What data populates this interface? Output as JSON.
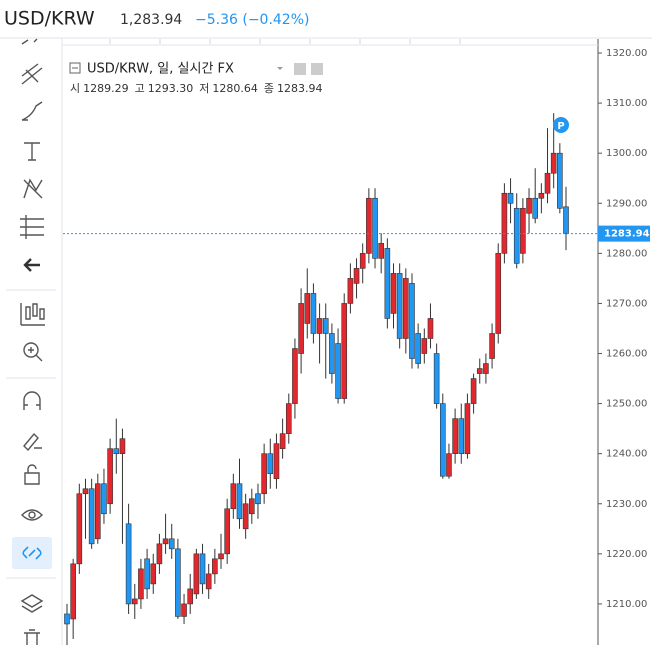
{
  "header": {
    "symbol": "USD/KRW",
    "price": "1,283.94",
    "change": "−5.36 (−0.42%)"
  },
  "chart_data": {
    "type": "candlestick",
    "title": "USD/KRW, 일, 실시간 FX",
    "ohlc_labels": [
      [
        "시",
        "1289.29"
      ],
      [
        "고",
        "1293.30"
      ],
      [
        "저",
        "1280.64"
      ],
      [
        "종",
        "1283.94"
      ]
    ],
    "up_color": "#e0282e",
    "down_color": "#2196f3",
    "ylim": [
      1201.8,
      1322.8
    ],
    "yticks": [
      {
        "value": 1210,
        "label": "1210.00"
      },
      {
        "value": 1220,
        "label": "1220.00"
      },
      {
        "value": 1230,
        "label": "1230.00"
      },
      {
        "value": 1240,
        "label": "1240.00"
      },
      {
        "value": 1250,
        "label": "1250.00"
      },
      {
        "value": 1260,
        "label": "1260.00"
      },
      {
        "value": 1270,
        "label": "1270.00"
      },
      {
        "value": 1280,
        "label": "1280.00"
      },
      {
        "value": 1290,
        "label": "1290.00"
      },
      {
        "value": 1300,
        "label": "1300.00"
      },
      {
        "value": 1310,
        "label": "1310.00"
      },
      {
        "value": 1320,
        "label": "1320.00"
      }
    ],
    "price_line": {
      "value": 1283.94,
      "label": "1283.94"
    },
    "candles": [
      [
        1208,
        1210,
        1201,
        1206
      ],
      [
        1207,
        1219,
        1203,
        1218
      ],
      [
        1218,
        1234,
        1216,
        1232
      ],
      [
        1232,
        1235,
        1223,
        1233
      ],
      [
        1233,
        1235,
        1221,
        1222
      ],
      [
        1223,
        1236,
        1222,
        1234
      ],
      [
        1234,
        1237,
        1226,
        1228
      ],
      [
        1230,
        1243,
        1228,
        1241
      ],
      [
        1241,
        1247,
        1236,
        1240
      ],
      [
        1240,
        1245,
        1222,
        1243
      ],
      [
        1226,
        1230,
        1208,
        1210
      ],
      [
        1210,
        1214,
        1207,
        1211
      ],
      [
        1211,
        1219,
        1209,
        1217
      ],
      [
        1219,
        1221,
        1211,
        1213
      ],
      [
        1214,
        1220,
        1212,
        1218
      ],
      [
        1218,
        1224,
        1216,
        1222
      ],
      [
        1222,
        1228,
        1220,
        1223
      ],
      [
        1223,
        1226,
        1219,
        1221
      ],
      [
        1221,
        1223,
        1207,
        1207.5
      ],
      [
        1207.5,
        1212,
        1206,
        1210
      ],
      [
        1210,
        1216,
        1208,
        1213
      ],
      [
        1212,
        1221,
        1211,
        1220
      ],
      [
        1220,
        1222,
        1212,
        1214
      ],
      [
        1213,
        1218,
        1211,
        1216
      ],
      [
        1216,
        1221,
        1214,
        1219
      ],
      [
        1219,
        1224,
        1217,
        1220
      ],
      [
        1220,
        1231,
        1218,
        1229
      ],
      [
        1229,
        1236,
        1227,
        1234
      ],
      [
        1234,
        1239,
        1225,
        1227
      ],
      [
        1225,
        1232,
        1223,
        1230
      ],
      [
        1228,
        1233,
        1226,
        1231
      ],
      [
        1232,
        1234,
        1227,
        1230
      ],
      [
        1232,
        1242,
        1230,
        1240
      ],
      [
        1240,
        1243,
        1233,
        1236
      ],
      [
        1235,
        1244,
        1233,
        1242
      ],
      [
        1241,
        1247,
        1239,
        1244
      ],
      [
        1244,
        1252,
        1242,
        1250
      ],
      [
        1250,
        1263,
        1247,
        1261
      ],
      [
        1260,
        1273,
        1256,
        1270
      ],
      [
        1266,
        1277,
        1263,
        1272
      ],
      [
        1272,
        1274,
        1262,
        1264
      ],
      [
        1264,
        1270,
        1258,
        1267
      ],
      [
        1267,
        1270,
        1255,
        1264
      ],
      [
        1264,
        1266,
        1254,
        1256
      ],
      [
        1262,
        1265,
        1250,
        1251
      ],
      [
        1251,
        1272,
        1250,
        1270
      ],
      [
        1270,
        1278,
        1268,
        1275
      ],
      [
        1274,
        1279,
        1271,
        1277
      ],
      [
        1277,
        1282,
        1274,
        1280
      ],
      [
        1280,
        1293,
        1278,
        1291
      ],
      [
        1291,
        1293,
        1277,
        1279
      ],
      [
        1279,
        1284,
        1276,
        1282
      ],
      [
        1281,
        1283,
        1265,
        1267
      ],
      [
        1268,
        1278,
        1265,
        1276
      ],
      [
        1276,
        1278,
        1261,
        1263
      ],
      [
        1263,
        1277,
        1260,
        1275
      ],
      [
        1274,
        1276,
        1257,
        1259
      ],
      [
        1264,
        1266,
        1257,
        1258
      ],
      [
        1260,
        1265,
        1258,
        1263
      ],
      [
        1263,
        1270,
        1261,
        1267
      ],
      [
        1260,
        1262,
        1249,
        1250
      ],
      [
        1250,
        1252,
        1235,
        1235.5
      ],
      [
        1235.5,
        1242,
        1235,
        1240
      ],
      [
        1240,
        1249,
        1238,
        1247
      ],
      [
        1247,
        1250,
        1238,
        1240
      ],
      [
        1240,
        1252,
        1239,
        1250
      ],
      [
        1250,
        1256,
        1248,
        1255
      ],
      [
        1256,
        1259,
        1254,
        1257
      ],
      [
        1256,
        1260,
        1254,
        1258
      ],
      [
        1259,
        1266,
        1257,
        1264
      ],
      [
        1264,
        1282,
        1262,
        1280
      ],
      [
        1280,
        1294,
        1278,
        1292
      ],
      [
        1292,
        1295,
        1286,
        1290
      ],
      [
        1289,
        1292,
        1277,
        1278
      ],
      [
        1280,
        1291,
        1278,
        1289
      ],
      [
        1288,
        1293,
        1284,
        1291
      ],
      [
        1291,
        1297,
        1286,
        1287
      ],
      [
        1291,
        1294,
        1288,
        1292
      ],
      [
        1292,
        1305,
        1290,
        1296
      ],
      [
        1296,
        1308,
        1293,
        1300
      ],
      [
        1300,
        1302,
        1288,
        1289
      ],
      [
        1289.29,
        1293.3,
        1280.64,
        1283.94
      ]
    ]
  }
}
